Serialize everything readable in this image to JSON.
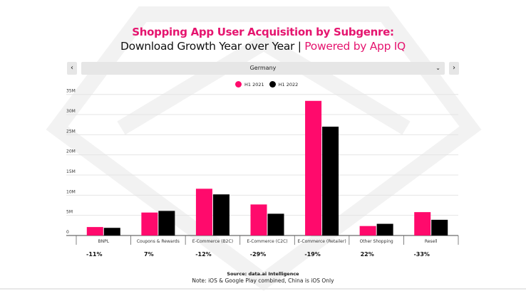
{
  "header": {
    "title": "Shopping App User Acquisition by Subgenre:",
    "subtitle_main": "Download Growth Year over Year | ",
    "subtitle_brand": "Powered by App IQ"
  },
  "controls": {
    "prev_icon": "chevron-left-icon",
    "prev_label": "‹",
    "next_icon": "chevron-right-icon",
    "next_label": "›",
    "country_selected": "Germany",
    "dropdown_icon": "⌄"
  },
  "footer": {
    "source": "Source: data.ai Intelligence",
    "note": "Note: iOS & Google Play combined, China is iOS Only"
  },
  "colors": {
    "h1_2021": "#ff0a6c",
    "h1_2022": "#000000",
    "brand": "#e5156f"
  },
  "chart_data": {
    "type": "bar",
    "categories": [
      "BNPL",
      "Coupons & Rewards",
      "E-Commerce (B2C)",
      "E-Commerce (C2C)",
      "E-Commerce (Retailer)",
      "Other Shopping",
      "Resell"
    ],
    "series": [
      {
        "name": "H1 2021",
        "values": [
          2.1,
          5.7,
          11.6,
          7.7,
          33.4,
          2.35,
          5.8
        ]
      },
      {
        "name": "H1 2022",
        "values": [
          1.9,
          6.1,
          10.2,
          5.4,
          27.0,
          2.9,
          3.9
        ]
      }
    ],
    "growth_labels": [
      "-11%",
      "7%",
      "-12%",
      "-29%",
      "-19%",
      "22%",
      "-33%"
    ],
    "yticks": [
      0,
      5,
      10,
      15,
      20,
      25,
      30,
      35
    ],
    "ytick_labels": [
      "0",
      "5M",
      "10M",
      "15M",
      "20M",
      "25M",
      "30M",
      "35M"
    ],
    "ylim": [
      0,
      35
    ],
    "yunit": "millions of downloads",
    "grid": true,
    "legend_position": "top-center"
  }
}
